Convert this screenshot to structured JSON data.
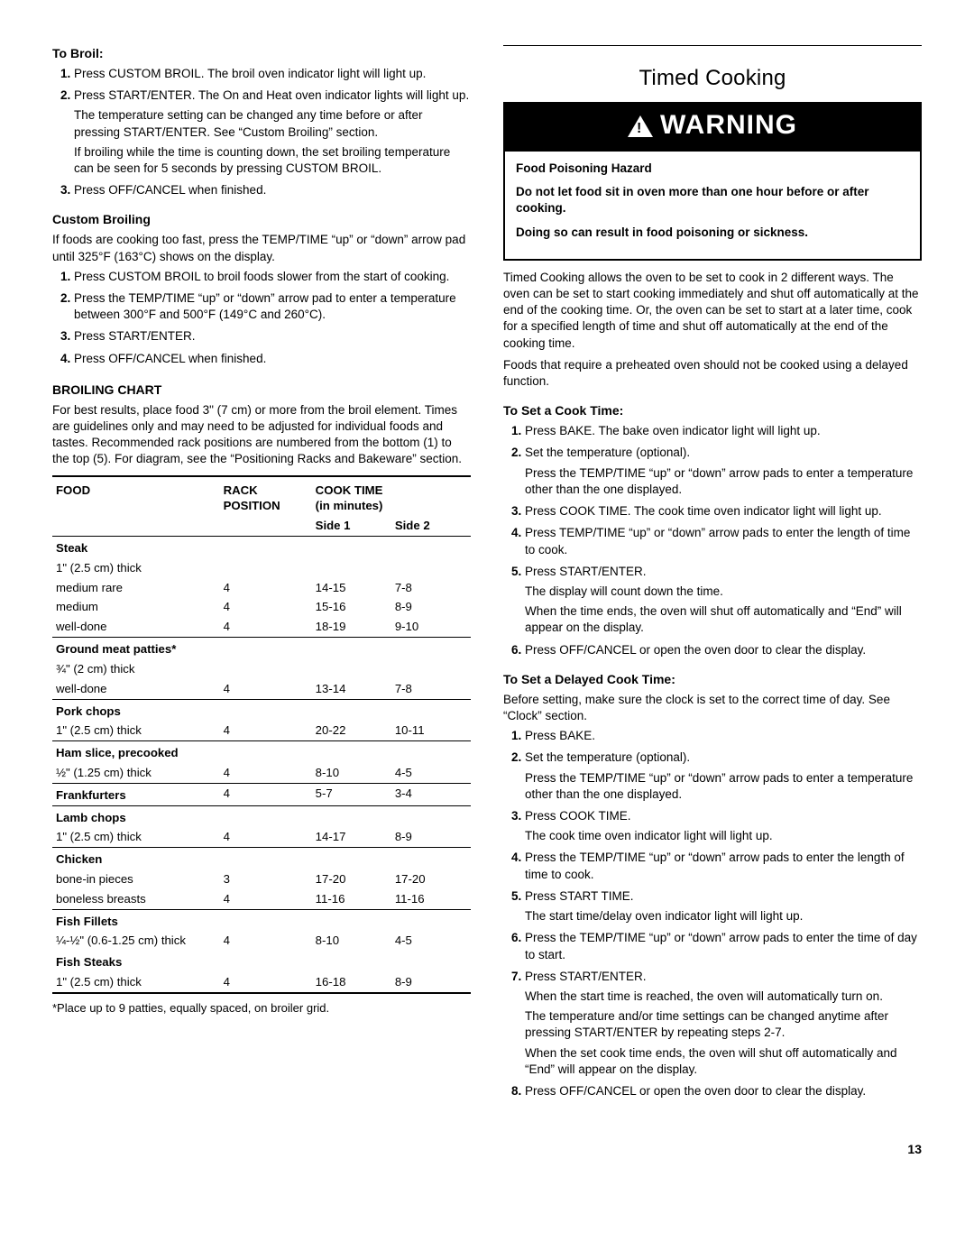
{
  "left": {
    "toBroil": {
      "heading": "To Broil:",
      "steps": [
        "Press CUSTOM BROIL. The broil oven indicator light will light up.",
        "Press START/ENTER. The On and Heat oven indicator lights will light up.",
        "Press OFF/CANCEL when finished."
      ],
      "step2_sub1": "The temperature setting can be changed any time before or after pressing START/ENTER. See “Custom Broiling” section.",
      "step2_sub2": "If broiling while the time is counting down, the set broiling temperature can be seen for 5 seconds by pressing CUSTOM BROIL."
    },
    "custom": {
      "heading": "Custom Broiling",
      "intro": "If foods are cooking too fast, press the TEMP/TIME “up” or “down” arrow pad until 325°F (163°C) shows on the display.",
      "steps": [
        "Press CUSTOM BROIL to broil foods slower from the start of cooking.",
        "Press the TEMP/TIME “up” or “down” arrow pad to enter a temperature between 300°F and 500°F (149°C and 260°C).",
        "Press START/ENTER.",
        "Press OFF/CANCEL when finished."
      ]
    },
    "chart": {
      "heading": "BROILING CHART",
      "intro": "For best results, place food 3\" (7 cm) or more from the broil element. Times are guidelines only and may need to be adjusted for individual foods and tastes. Recommended rack positions are numbered from the bottom (1) to the top (5). For diagram, see the “Positioning Racks and Bakeware” section.",
      "headers": {
        "food": "FOOD",
        "rack": "RACK POSITION",
        "cook": "COOK TIME (in minutes)",
        "side1": "Side 1",
        "side2": "Side 2"
      },
      "groups": [
        {
          "title": "Steak",
          "sub": "1\" (2.5 cm) thick",
          "rows": [
            {
              "name": "medium rare",
              "rack": "4",
              "s1": "14-15",
              "s2": "7-8"
            },
            {
              "name": "medium",
              "rack": "4",
              "s1": "15-16",
              "s2": "8-9"
            },
            {
              "name": "well-done",
              "rack": "4",
              "s1": "18-19",
              "s2": "9-10"
            }
          ]
        },
        {
          "title": "Ground meat patties*",
          "sub": "¾\" (2 cm) thick",
          "rows": [
            {
              "name": "well-done",
              "rack": "4",
              "s1": "13-14",
              "s2": "7-8"
            }
          ]
        },
        {
          "title": "Pork chops",
          "rows": [
            {
              "name": "1\" (2.5 cm) thick",
              "rack": "4",
              "s1": "20-22",
              "s2": "10-11"
            }
          ]
        },
        {
          "title": "Ham slice, precooked",
          "rows": [
            {
              "name": "½\" (1.25 cm) thick",
              "rack": "4",
              "s1": "8-10",
              "s2": "4-5"
            }
          ]
        },
        {
          "title": "Frankfurters",
          "rows": [
            {
              "name": "",
              "rack": "4",
              "s1": "5-7",
              "s2": "3-4",
              "inline": true
            }
          ]
        },
        {
          "title": "Lamb chops",
          "rows": [
            {
              "name": "1\" (2.5 cm) thick",
              "rack": "4",
              "s1": "14-17",
              "s2": "8-9"
            }
          ]
        },
        {
          "title": "Chicken",
          "rows": [
            {
              "name": "bone-in pieces",
              "rack": "3",
              "s1": "17-20",
              "s2": "17-20"
            },
            {
              "name": "boneless breasts",
              "rack": "4",
              "s1": "11-16",
              "s2": "11-16"
            }
          ]
        },
        {
          "title": "Fish Fillets",
          "rows": [
            {
              "name": "¼-½\" (0.6-1.25 cm) thick",
              "rack": "4",
              "s1": "8-10",
              "s2": "4-5"
            }
          ],
          "title2": "Fish Steaks",
          "rows2": [
            {
              "name": "1\" (2.5 cm) thick",
              "rack": "4",
              "s1": "16-18",
              "s2": "8-9"
            }
          ]
        }
      ],
      "footnote": "*Place up to 9 patties, equally spaced, on broiler grid."
    }
  },
  "right": {
    "title": "Timed Cooking",
    "warning_label": "WARNING",
    "warning": {
      "l1": "Food Poisoning Hazard",
      "l2": "Do not let food sit in oven more than one hour before or after cooking.",
      "l3": "Doing so can result in food poisoning or sickness."
    },
    "intro1": "Timed Cooking allows the oven to be set to cook in 2 different ways. The oven can be set to start cooking immediately and shut off automatically at the end of the cooking time. Or, the oven can be set to start at a later time, cook for a specified length of time and shut off automatically at the end of the cooking time.",
    "intro2": "Foods that require a preheated oven should not be cooked using a delayed function.",
    "setCook": {
      "heading": "To Set a Cook Time:",
      "s1": "Press BAKE. The bake oven indicator light will light up.",
      "s2": "Set the temperature (optional).",
      "s2a": "Press the TEMP/TIME “up” or “down” arrow pads to enter a temperature other than the one displayed.",
      "s3": "Press COOK TIME. The cook time oven indicator light will light up.",
      "s4": "Press TEMP/TIME “up” or “down” arrow pads to enter the length of time to cook.",
      "s5": "Press START/ENTER.",
      "s5a": "The display will count down the time.",
      "s5b": "When the time ends, the oven will shut off automatically and “End” will appear on the display.",
      "s6": "Press OFF/CANCEL or open the oven door to clear the display."
    },
    "delayed": {
      "heading": "To Set a Delayed Cook Time:",
      "intro": "Before setting, make sure the clock is set to the correct time of day. See “Clock” section.",
      "s1": "Press BAKE.",
      "s2": "Set the temperature (optional).",
      "s2a": "Press the TEMP/TIME “up” or “down” arrow pads to enter a temperature other than the one displayed.",
      "s3": "Press COOK TIME.",
      "s3a": "The cook time oven indicator light will light up.",
      "s4": "Press the TEMP/TIME “up” or “down” arrow pads to enter the length of time to cook.",
      "s5": "Press START TIME.",
      "s5a": "The start time/delay oven indicator light will light up.",
      "s6": "Press the TEMP/TIME “up” or “down” arrow pads to enter the time of day to start.",
      "s7": "Press START/ENTER.",
      "s7a": "When the start time is reached, the oven will automatically turn on.",
      "s7b": "The temperature and/or time settings can be changed anytime after pressing START/ENTER by repeating steps 2-7.",
      "s7c": "When the set cook time ends, the oven will shut off automatically and “End” will appear on the display.",
      "s8": "Press OFF/CANCEL or open the oven door to clear the display."
    }
  },
  "page": "13"
}
